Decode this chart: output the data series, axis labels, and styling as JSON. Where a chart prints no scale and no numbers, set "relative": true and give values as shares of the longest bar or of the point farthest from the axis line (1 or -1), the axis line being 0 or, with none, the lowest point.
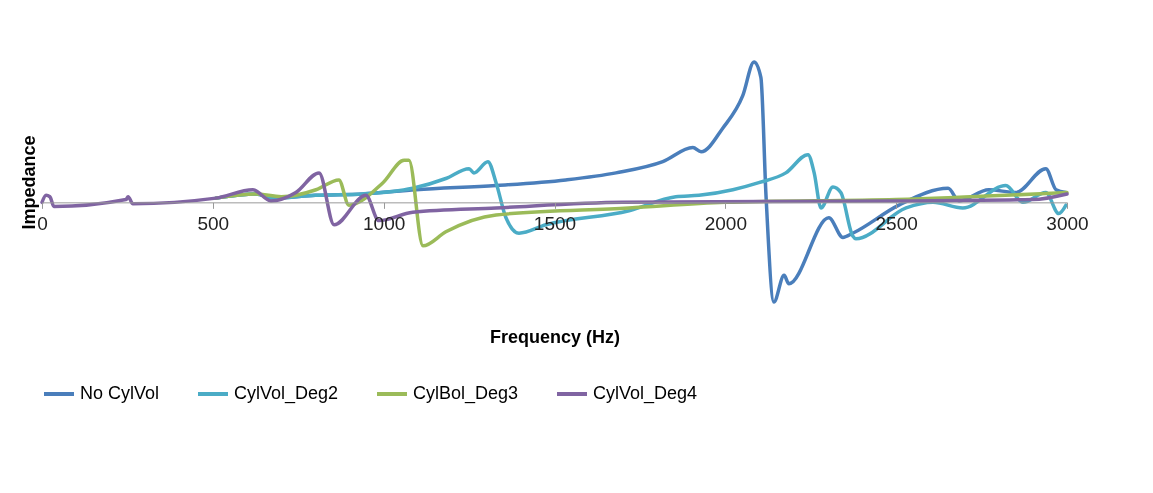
{
  "chart_data": {
    "type": "line",
    "xlabel": "Frequency (Hz)",
    "ylabel": "Impedance",
    "relative": true,
    "xlim": [
      0,
      3000
    ],
    "xticks": [
      0,
      500,
      1000,
      1500,
      2000,
      2500,
      3000
    ],
    "grid": false,
    "legend": "bottom",
    "marker": "none",
    "line_style": "solid",
    "series": [
      {
        "name": "No CylVol",
        "color": "#4a7ebb",
        "x": [
          509,
          626,
          680,
          800,
          939,
          1095,
          1329,
          1533,
          1680,
          1817,
          1905,
          1929,
          1993,
          2051,
          2084,
          2104,
          2119,
          2142,
          2172,
          2186,
          2303,
          2344,
          2373,
          2508,
          2652,
          2684,
          2771,
          2850,
          2938,
          2968,
          2997
        ],
        "values": [
          0.03,
          0.06,
          0.03,
          0.05,
          0.06,
          0.09,
          0.12,
          0.16,
          0.21,
          0.29,
          0.39,
          0.36,
          0.53,
          0.76,
          1,
          0.89,
          0.05,
          -0.71,
          -0.52,
          -0.58,
          -0.11,
          -0.25,
          -0.22,
          -0.02,
          0.1,
          0.01,
          0.09,
          0.07,
          0.24,
          0.09,
          0.07
        ]
      },
      {
        "name": "CylVol_Deg2",
        "color": "#4bacc6",
        "x": [
          509,
          626,
          680,
          800,
          939,
          1085,
          1182,
          1250,
          1264,
          1305,
          1329,
          1358,
          1396,
          1475,
          1718,
          1855,
          1923,
          2022,
          2098,
          2177,
          2242,
          2260,
          2280,
          2315,
          2338,
          2373,
          2382,
          2529,
          2608,
          2695,
          2821,
          2871,
          2938,
          2976,
          2997
        ],
        "values": [
          0.03,
          0.06,
          0.03,
          0.05,
          0.06,
          0.1,
          0.17,
          0.24,
          0.21,
          0.29,
          0.14,
          -0.11,
          -0.22,
          -0.16,
          -0.06,
          0.04,
          0.05,
          0.09,
          0.14,
          0.21,
          0.34,
          0.21,
          -0.04,
          0.11,
          0.07,
          -0.24,
          -0.26,
          -0.04,
          0,
          -0.04,
          0.12,
          0,
          0.07,
          -0.08,
          -0.02
        ]
      },
      {
        "name": "CylBol_Deg3",
        "color": "#9bbb59",
        "x": [
          509,
          626,
          700,
          802,
          869,
          898,
          998,
          1060,
          1074,
          1115,
          1182,
          1329,
          1718,
          2000,
          2500,
          3000
        ],
        "values": [
          0.03,
          0.06,
          0.04,
          0.09,
          0.16,
          -0.02,
          0.14,
          0.3,
          0.3,
          -0.31,
          -0.21,
          -0.09,
          -0.04,
          0,
          0.02,
          0.07
        ]
      },
      {
        "name": "CylVol_Deg4",
        "color": "#8064a2",
        "x": [
          0,
          12,
          23,
          35,
          246,
          252,
          266,
          509,
          617,
          670,
          743,
          811,
          855,
          948,
          986,
          1085,
          1329,
          1700,
          2500,
          2900,
          3000
        ],
        "values": [
          0,
          0.05,
          0.04,
          -0.03,
          0.02,
          0.04,
          -0.01,
          0.03,
          0.09,
          0.01,
          0.07,
          0.21,
          -0.16,
          0.05,
          -0.13,
          -0.07,
          -0.04,
          0,
          0.01,
          0.02,
          0.06
        ]
      }
    ]
  }
}
